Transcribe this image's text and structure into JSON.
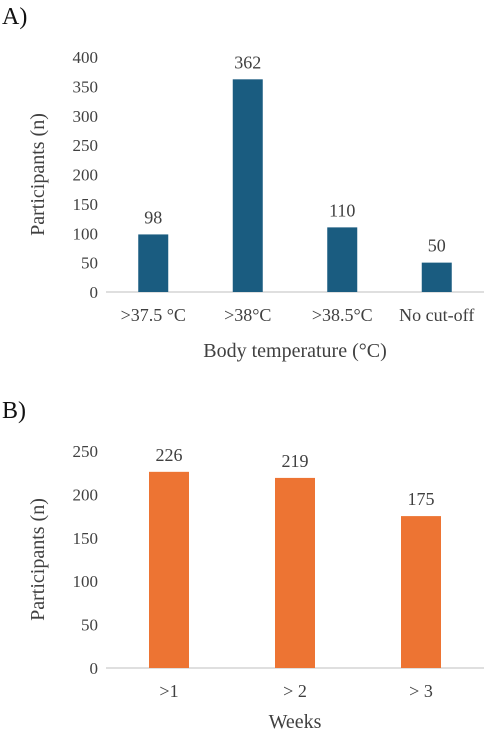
{
  "panels": [
    {
      "label": "A)"
    },
    {
      "label": "B)"
    }
  ],
  "chart_data": [
    {
      "type": "bar",
      "title": "",
      "xlabel": "Body temperature (°C)",
      "ylabel": "Participants (n)",
      "categories": [
        ">37.5 °C",
        ">38°C",
        ">38.5°C",
        "No cut-off"
      ],
      "values": [
        98,
        362,
        110,
        50
      ],
      "data_labels": [
        "98",
        "362",
        "110",
        "50"
      ],
      "ylim": [
        0,
        400
      ],
      "yticks": [
        0,
        50,
        100,
        150,
        200,
        250,
        300,
        350,
        400
      ],
      "grid": false,
      "color": "#1a5c80"
    },
    {
      "type": "bar",
      "title": "",
      "xlabel": "Weeks",
      "ylabel": "Participants (n)",
      "categories": [
        ">1",
        "> 2",
        "> 3"
      ],
      "values": [
        226,
        219,
        175
      ],
      "data_labels": [
        "226",
        "219",
        "175"
      ],
      "ylim": [
        0,
        250
      ],
      "yticks": [
        0,
        50,
        100,
        150,
        200,
        250
      ],
      "grid": false,
      "color": "#ed7433"
    }
  ]
}
